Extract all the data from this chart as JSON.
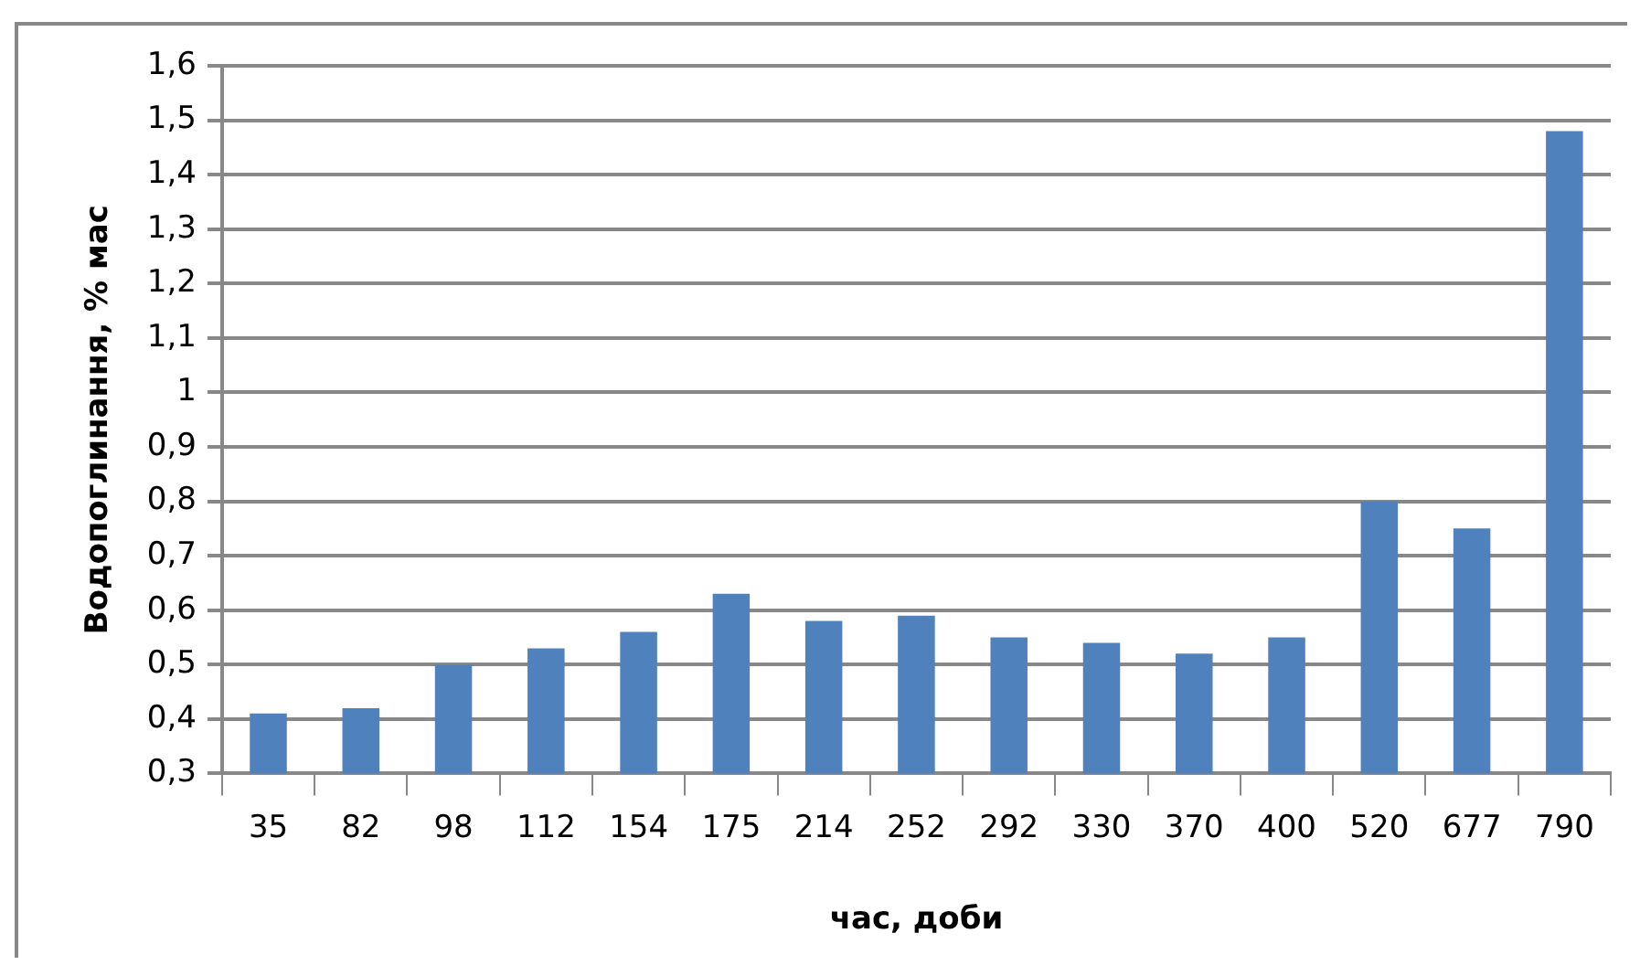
{
  "chart_data": {
    "type": "bar",
    "xlabel": "час, доби",
    "ylabel": "Водопоглинання, % мас",
    "categories": [
      "35",
      "82",
      "98",
      "112",
      "154",
      "175",
      "214",
      "252",
      "292",
      "330",
      "370",
      "400",
      "520",
      "677",
      "790"
    ],
    "values": [
      0.41,
      0.42,
      0.5,
      0.53,
      0.56,
      0.63,
      0.58,
      0.59,
      0.55,
      0.54,
      0.52,
      0.55,
      0.8,
      0.75,
      1.48
    ],
    "color": "#4f81bd",
    "ylim": [
      0.3,
      1.6
    ],
    "yticks": [
      {
        "value": 0.3,
        "label": "0,3"
      },
      {
        "value": 0.4,
        "label": "0,4"
      },
      {
        "value": 0.5,
        "label": "0,5"
      },
      {
        "value": 0.6,
        "label": "0,6"
      },
      {
        "value": 0.7,
        "label": "0,7"
      },
      {
        "value": 0.8,
        "label": "0,8"
      },
      {
        "value": 0.9,
        "label": "0,9"
      },
      {
        "value": 1,
        "label": "1"
      },
      {
        "value": 1.1,
        "label": "1,1"
      },
      {
        "value": 1.2,
        "label": "1,2"
      },
      {
        "value": 1.3,
        "label": "1,3"
      },
      {
        "value": 1.4,
        "label": "1,4"
      },
      {
        "value": 1.5,
        "label": "1,5"
      },
      {
        "value": 1.6,
        "label": "1,6"
      }
    ],
    "grid": "y",
    "legend": false
  }
}
